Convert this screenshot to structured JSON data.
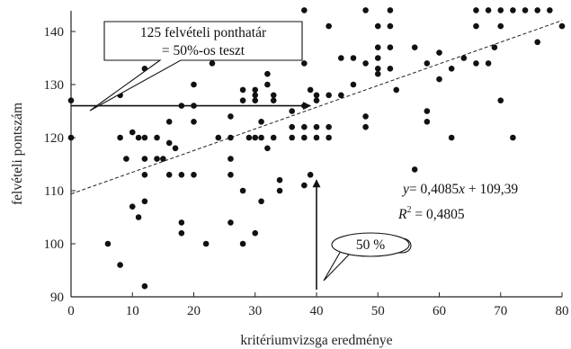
{
  "chart_data": {
    "type": "scatter",
    "xlabel": "kritériumvizsga eredménye",
    "ylabel": "felvételi pontszám",
    "xlim": [
      0,
      80
    ],
    "ylim": [
      90,
      144
    ],
    "x_ticks": [
      0,
      10,
      20,
      30,
      40,
      50,
      60,
      70,
      80
    ],
    "y_ticks": [
      90,
      100,
      110,
      120,
      130,
      140
    ],
    "grid": false,
    "points": [
      {
        "x": 0,
        "y": 127
      },
      {
        "x": 0,
        "y": 120
      },
      {
        "x": 6,
        "y": 100
      },
      {
        "x": 8,
        "y": 128
      },
      {
        "x": 8,
        "y": 120
      },
      {
        "x": 8,
        "y": 96
      },
      {
        "x": 9,
        "y": 116
      },
      {
        "x": 10,
        "y": 121
      },
      {
        "x": 10,
        "y": 107
      },
      {
        "x": 11,
        "y": 120
      },
      {
        "x": 11,
        "y": 105
      },
      {
        "x": 12,
        "y": 133
      },
      {
        "x": 12,
        "y": 120
      },
      {
        "x": 12,
        "y": 116
      },
      {
        "x": 12,
        "y": 113
      },
      {
        "x": 12,
        "y": 108
      },
      {
        "x": 12,
        "y": 92
      },
      {
        "x": 14,
        "y": 120
      },
      {
        "x": 14,
        "y": 116
      },
      {
        "x": 15,
        "y": 116
      },
      {
        "x": 16,
        "y": 123
      },
      {
        "x": 16,
        "y": 119
      },
      {
        "x": 16,
        "y": 113
      },
      {
        "x": 17,
        "y": 118
      },
      {
        "x": 18,
        "y": 126
      },
      {
        "x": 18,
        "y": 113
      },
      {
        "x": 18,
        "y": 104
      },
      {
        "x": 18,
        "y": 102
      },
      {
        "x": 20,
        "y": 130
      },
      {
        "x": 20,
        "y": 126
      },
      {
        "x": 20,
        "y": 123
      },
      {
        "x": 20,
        "y": 113
      },
      {
        "x": 22,
        "y": 100
      },
      {
        "x": 23,
        "y": 134
      },
      {
        "x": 24,
        "y": 120
      },
      {
        "x": 26,
        "y": 124
      },
      {
        "x": 26,
        "y": 120
      },
      {
        "x": 26,
        "y": 116
      },
      {
        "x": 26,
        "y": 113
      },
      {
        "x": 26,
        "y": 104
      },
      {
        "x": 28,
        "y": 129
      },
      {
        "x": 28,
        "y": 127
      },
      {
        "x": 28,
        "y": 110
      },
      {
        "x": 28,
        "y": 100
      },
      {
        "x": 29,
        "y": 120
      },
      {
        "x": 30,
        "y": 129
      },
      {
        "x": 30,
        "y": 128
      },
      {
        "x": 30,
        "y": 127
      },
      {
        "x": 30,
        "y": 120
      },
      {
        "x": 30,
        "y": 102
      },
      {
        "x": 31,
        "y": 123
      },
      {
        "x": 31,
        "y": 120
      },
      {
        "x": 31,
        "y": 108
      },
      {
        "x": 32,
        "y": 132
      },
      {
        "x": 32,
        "y": 130
      },
      {
        "x": 32,
        "y": 118
      },
      {
        "x": 33,
        "y": 128
      },
      {
        "x": 33,
        "y": 127
      },
      {
        "x": 33,
        "y": 120
      },
      {
        "x": 34,
        "y": 136
      },
      {
        "x": 34,
        "y": 112
      },
      {
        "x": 34,
        "y": 110
      },
      {
        "x": 36,
        "y": 125
      },
      {
        "x": 36,
        "y": 122
      },
      {
        "x": 36,
        "y": 120
      },
      {
        "x": 38,
        "y": 144
      },
      {
        "x": 38,
        "y": 134
      },
      {
        "x": 38,
        "y": 126
      },
      {
        "x": 38,
        "y": 122
      },
      {
        "x": 38,
        "y": 120
      },
      {
        "x": 38,
        "y": 111
      },
      {
        "x": 39,
        "y": 129
      },
      {
        "x": 39,
        "y": 113
      },
      {
        "x": 40,
        "y": 128
      },
      {
        "x": 40,
        "y": 127
      },
      {
        "x": 40,
        "y": 122
      },
      {
        "x": 40,
        "y": 120
      },
      {
        "x": 42,
        "y": 141
      },
      {
        "x": 42,
        "y": 128
      },
      {
        "x": 42,
        "y": 122
      },
      {
        "x": 42,
        "y": 120
      },
      {
        "x": 44,
        "y": 135
      },
      {
        "x": 44,
        "y": 128
      },
      {
        "x": 46,
        "y": 135
      },
      {
        "x": 46,
        "y": 130
      },
      {
        "x": 48,
        "y": 144
      },
      {
        "x": 48,
        "y": 134
      },
      {
        "x": 48,
        "y": 124
      },
      {
        "x": 48,
        "y": 122
      },
      {
        "x": 50,
        "y": 141
      },
      {
        "x": 50,
        "y": 137
      },
      {
        "x": 50,
        "y": 135
      },
      {
        "x": 50,
        "y": 133
      },
      {
        "x": 50,
        "y": 132
      },
      {
        "x": 52,
        "y": 144
      },
      {
        "x": 52,
        "y": 141
      },
      {
        "x": 52,
        "y": 137
      },
      {
        "x": 52,
        "y": 133
      },
      {
        "x": 53,
        "y": 129
      },
      {
        "x": 56,
        "y": 137
      },
      {
        "x": 56,
        "y": 114
      },
      {
        "x": 58,
        "y": 134
      },
      {
        "x": 58,
        "y": 125
      },
      {
        "x": 58,
        "y": 123
      },
      {
        "x": 60,
        "y": 136
      },
      {
        "x": 60,
        "y": 131
      },
      {
        "x": 62,
        "y": 133
      },
      {
        "x": 62,
        "y": 120
      },
      {
        "x": 64,
        "y": 135
      },
      {
        "x": 66,
        "y": 144
      },
      {
        "x": 66,
        "y": 141
      },
      {
        "x": 66,
        "y": 134
      },
      {
        "x": 68,
        "y": 144
      },
      {
        "x": 68,
        "y": 134
      },
      {
        "x": 69,
        "y": 137
      },
      {
        "x": 70,
        "y": 144
      },
      {
        "x": 70,
        "y": 141
      },
      {
        "x": 70,
        "y": 127
      },
      {
        "x": 72,
        "y": 144
      },
      {
        "x": 72,
        "y": 120
      },
      {
        "x": 74,
        "y": 144
      },
      {
        "x": 76,
        "y": 144
      },
      {
        "x": 76,
        "y": 138
      },
      {
        "x": 78,
        "y": 144
      },
      {
        "x": 80,
        "y": 141
      }
    ],
    "trendline": {
      "slope": 0.4085,
      "intercept": 109.39,
      "x_range": [
        0,
        80
      ],
      "style": "dashed"
    },
    "equation_text": "= 0,4085",
    "equation_var_y": "y",
    "equation_var_x": "x",
    "equation_tail": " + 109,39",
    "r2_var": "R",
    "r2_exp": "2",
    "r2_value": " = 0,4805",
    "annotations": [
      {
        "id": "threshold",
        "lines": [
          "125 felvételi ponthatár",
          "= 50%-os teszt"
        ],
        "box": "rectangle",
        "horizontal_arrow_y": 126,
        "horizontal_arrow_x_end": 39
      },
      {
        "id": "fifty",
        "text": "50 %",
        "box": "ellipse",
        "vertical_arrow_x": 40,
        "vertical_arrow_y_from": 90,
        "vertical_arrow_y_to": 112
      }
    ],
    "colors": {
      "points": "#111111",
      "line": "#222222",
      "arrow": "#111111"
    }
  }
}
